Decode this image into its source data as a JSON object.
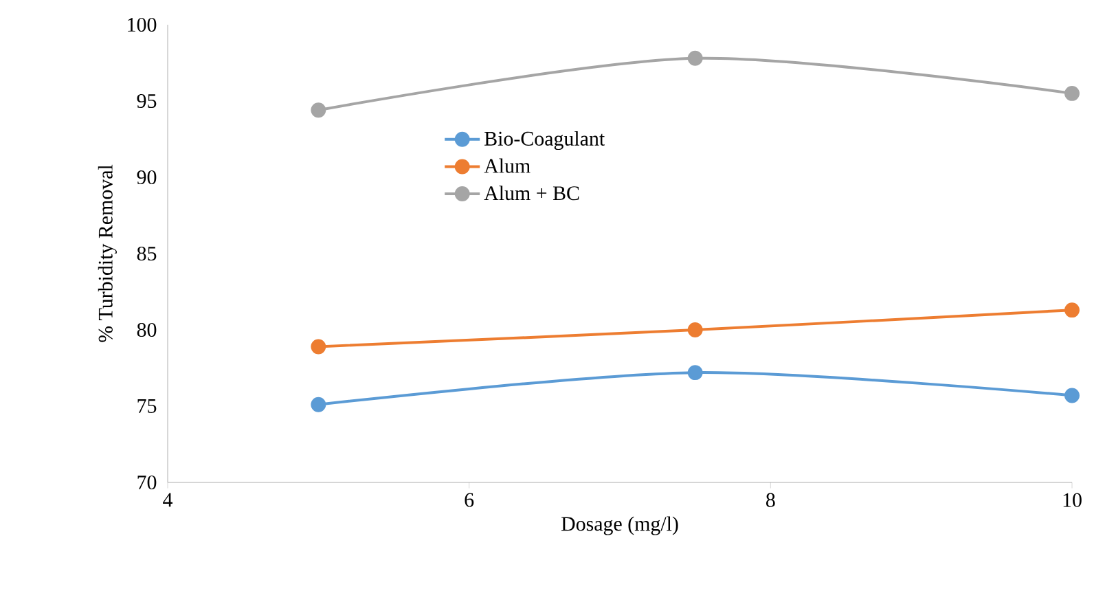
{
  "chart_data": {
    "type": "line",
    "xlabel": "Dosage (mg/l)",
    "ylabel": "% Turbidity Removal",
    "x": [
      5,
      7.5,
      10
    ],
    "series": [
      {
        "name": "Bio-Coagulant",
        "color": "#5b9bd5",
        "values": [
          75.1,
          77.2,
          75.7
        ]
      },
      {
        "name": "Alum",
        "color": "#ed7d31",
        "values": [
          78.9,
          80.0,
          81.3
        ]
      },
      {
        "name": "Alum + BC",
        "color": "#a5a5a5",
        "values": [
          94.4,
          97.8,
          95.5
        ]
      }
    ],
    "xlim": [
      4,
      10
    ],
    "xticks": [
      4,
      6,
      8,
      10
    ],
    "ylim": [
      70,
      100
    ],
    "yticks": [
      70,
      75,
      80,
      85,
      90,
      95,
      100
    ],
    "grid": false,
    "legend": "top left",
    "marker": "circle",
    "line_style": "solid"
  }
}
